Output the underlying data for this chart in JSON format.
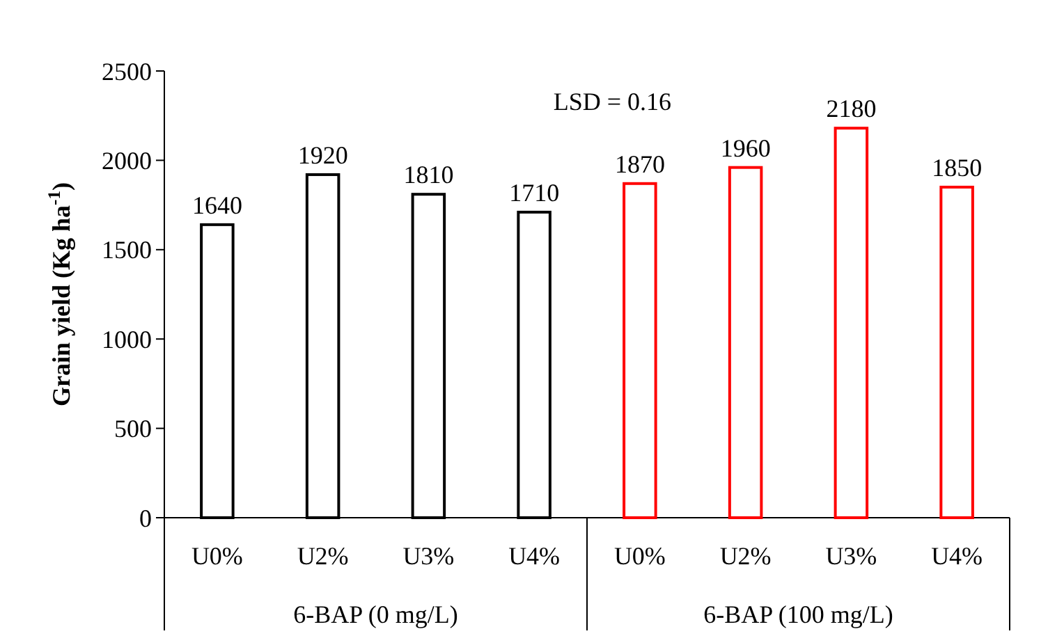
{
  "chart_data": {
    "type": "bar",
    "ylabel": "Grain yield (Kg ha$^{-1}$)",
    "categories": [
      "U0%",
      "U2%",
      "U3%",
      "U4%",
      "U0%",
      "U2%",
      "U3%",
      "U4%"
    ],
    "values": [
      1640,
      1920,
      1810,
      1710,
      1870,
      1960,
      2180,
      1850
    ],
    "colors": [
      "#000000",
      "#000000",
      "#000000",
      "#000000",
      "#ff0000",
      "#ff0000",
      "#ff0000",
      "#ff0000"
    ],
    "ylim": [
      0,
      2500
    ],
    "yticks": [
      0,
      500,
      1000,
      1500,
      2000,
      2500
    ],
    "data_labels": true,
    "annotations": [
      "LSD = 0.16",
      "6-BAP (0 mg/L)",
      "6-BAP (100 mg/L)"
    ]
  }
}
